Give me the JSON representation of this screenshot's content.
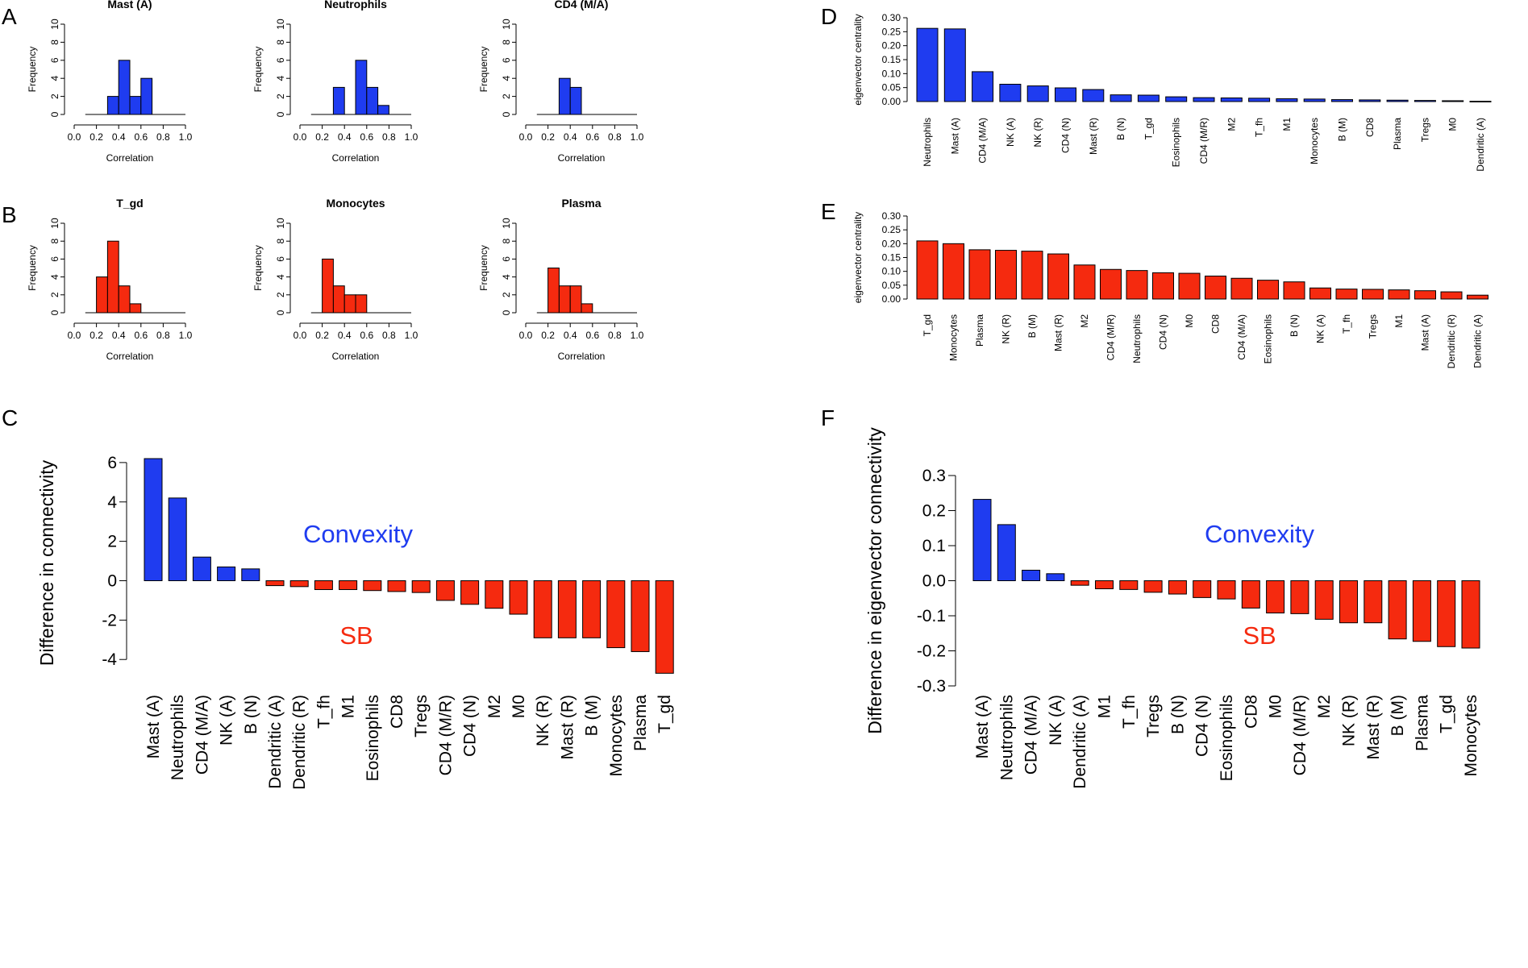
{
  "colors": {
    "blue": "#1f3cf0",
    "red": "#f52a0f",
    "axis": "#000000"
  },
  "chart_data": [
    {
      "panel": "A",
      "type": "histogram",
      "title": "Mast (A)",
      "xlabel": "Correlation",
      "ylabel": "Frequency",
      "xlim": [
        0,
        1
      ],
      "ylim": [
        0,
        10
      ],
      "xticks": [
        "0.0",
        "0.2",
        "0.4",
        "0.6",
        "0.8",
        "1.0"
      ],
      "yticks": [
        "0",
        "2",
        "4",
        "6",
        "8",
        "10"
      ],
      "bin_width": 0.1,
      "bins": [
        [
          0.3,
          2
        ],
        [
          0.4,
          6
        ],
        [
          0.5,
          2
        ],
        [
          0.6,
          4
        ]
      ],
      "baseline": [
        0.1,
        1.0
      ],
      "color": "blue"
    },
    {
      "panel": "A",
      "type": "histogram",
      "title": "Neutrophils",
      "xlabel": "Correlation",
      "ylabel": "Frequency",
      "xlim": [
        0,
        1
      ],
      "ylim": [
        0,
        10
      ],
      "xticks": [
        "0.0",
        "0.2",
        "0.4",
        "0.6",
        "0.8",
        "1.0"
      ],
      "yticks": [
        "0",
        "2",
        "4",
        "6",
        "8",
        "10"
      ],
      "bin_width": 0.1,
      "bins": [
        [
          0.3,
          3
        ],
        [
          0.4,
          0
        ],
        [
          0.5,
          6
        ],
        [
          0.6,
          3
        ],
        [
          0.7,
          1
        ]
      ],
      "baseline": [
        0.1,
        1.0
      ],
      "color": "blue"
    },
    {
      "panel": "A",
      "type": "histogram",
      "title": "CD4 (M/A)",
      "xlabel": "Correlation",
      "ylabel": "Frequency",
      "xlim": [
        0,
        1
      ],
      "ylim": [
        0,
        10
      ],
      "xticks": [
        "0.0",
        "0.2",
        "0.4",
        "0.6",
        "0.8",
        "1.0"
      ],
      "yticks": [
        "0",
        "2",
        "4",
        "6",
        "8",
        "10"
      ],
      "bin_width": 0.1,
      "bins": [
        [
          0.3,
          4
        ],
        [
          0.4,
          3
        ]
      ],
      "baseline": [
        0.1,
        1.0
      ],
      "color": "blue"
    },
    {
      "panel": "B",
      "type": "histogram",
      "title": "T_gd",
      "xlabel": "Correlation",
      "ylabel": "Frequency",
      "xlim": [
        0,
        1
      ],
      "ylim": [
        0,
        10
      ],
      "xticks": [
        "0.0",
        "0.2",
        "0.4",
        "0.6",
        "0.8",
        "1.0"
      ],
      "yticks": [
        "0",
        "2",
        "4",
        "6",
        "8",
        "10"
      ],
      "bin_width": 0.1,
      "bins": [
        [
          0.2,
          4
        ],
        [
          0.3,
          8
        ],
        [
          0.4,
          3
        ],
        [
          0.5,
          1
        ]
      ],
      "baseline": [
        0.1,
        1.0
      ],
      "color": "red"
    },
    {
      "panel": "B",
      "type": "histogram",
      "title": "Monocytes",
      "xlabel": "Correlation",
      "ylabel": "Frequency",
      "xlim": [
        0,
        1
      ],
      "ylim": [
        0,
        10
      ],
      "xticks": [
        "0.0",
        "0.2",
        "0.4",
        "0.6",
        "0.8",
        "1.0"
      ],
      "yticks": [
        "0",
        "2",
        "4",
        "6",
        "8",
        "10"
      ],
      "bin_width": 0.1,
      "bins": [
        [
          0.2,
          6
        ],
        [
          0.3,
          3
        ],
        [
          0.4,
          2
        ],
        [
          0.5,
          2
        ]
      ],
      "baseline": [
        0.1,
        1.0
      ],
      "color": "red"
    },
    {
      "panel": "B",
      "type": "histogram",
      "title": "Plasma",
      "xlabel": "Correlation",
      "ylabel": "Frequency",
      "xlim": [
        0,
        1
      ],
      "ylim": [
        0,
        10
      ],
      "xticks": [
        "0.0",
        "0.2",
        "0.4",
        "0.6",
        "0.8",
        "1.0"
      ],
      "yticks": [
        "0",
        "2",
        "4",
        "6",
        "8",
        "10"
      ],
      "bin_width": 0.1,
      "bins": [
        [
          0.2,
          5
        ],
        [
          0.3,
          3
        ],
        [
          0.4,
          3
        ],
        [
          0.5,
          1
        ]
      ],
      "baseline": [
        0.1,
        1.0
      ],
      "color": "red"
    },
    {
      "panel": "C",
      "type": "bar",
      "title": "",
      "xlabel": "",
      "ylabel": "Difference in connectivity",
      "ylim": [
        -4.4,
        6.2
      ],
      "yticks": [
        -4,
        -2,
        0,
        2,
        4,
        6
      ],
      "ytick_labels": [
        "-4",
        "-2",
        "0",
        "2",
        "4",
        "6"
      ],
      "annotations": [
        {
          "text": "Convexity",
          "color": "blue"
        },
        {
          "text": "SB",
          "color": "red"
        }
      ],
      "categories": [
        "Mast (A)",
        "Neutrophils",
        "CD4 (M/A)",
        "NK (A)",
        "B (N)",
        "Dendritic (A)",
        "Dendritic (R)",
        "T_fh",
        "M1",
        "Eosinophils",
        "CD8",
        "Tregs",
        "CD4 (M/R)",
        "CD4 (N)",
        "M2",
        "M0",
        "NK (R)",
        "Mast (R)",
        "B (M)",
        "Monocytes",
        "Plasma",
        "T_gd"
      ],
      "values": [
        6.2,
        4.2,
        1.2,
        0.7,
        0.6,
        -0.25,
        -0.3,
        -0.45,
        -0.45,
        -0.5,
        -0.55,
        -0.6,
        -1.0,
        -1.2,
        -1.4,
        -1.7,
        -2.9,
        -2.9,
        -2.9,
        -3.4,
        -3.6,
        -4.7
      ]
    },
    {
      "panel": "D",
      "type": "bar",
      "title": "",
      "xlabel": "",
      "ylabel": "eigenvector centrality",
      "ylim": [
        0,
        0.3
      ],
      "yticks": [
        0,
        0.05,
        0.1,
        0.15,
        0.2,
        0.25,
        0.3
      ],
      "ytick_labels": [
        "0.00",
        "0.05",
        "0.10",
        "0.15",
        "0.20",
        "0.25",
        "0.30"
      ],
      "categories": [
        "Neutrophils",
        "Mast (A)",
        "CD4 (M/A)",
        "NK (A)",
        "NK (R)",
        "CD4 (N)",
        "Mast (R)",
        "B (N)",
        "T_gd",
        "Eosinophils",
        "CD4 (M/R)",
        "M2",
        "T_fh",
        "M1",
        "Monocytes",
        "B (M)",
        "CD8",
        "Plasma",
        "Tregs",
        "M0",
        "Dendritic (A)"
      ],
      "values": [
        0.262,
        0.26,
        0.107,
        0.062,
        0.056,
        0.049,
        0.043,
        0.024,
        0.023,
        0.017,
        0.014,
        0.013,
        0.012,
        0.01,
        0.009,
        0.007,
        0.006,
        0.005,
        0.004,
        0.003,
        0.001
      ]
    },
    {
      "panel": "E",
      "type": "bar",
      "title": "",
      "xlabel": "",
      "ylabel": "eigenvector centrality",
      "ylim": [
        0,
        0.3
      ],
      "yticks": [
        0,
        0.05,
        0.1,
        0.15,
        0.2,
        0.25,
        0.3
      ],
      "ytick_labels": [
        "0.00",
        "0.05",
        "0.10",
        "0.15",
        "0.20",
        "0.25",
        "0.30"
      ],
      "categories": [
        "T_gd",
        "Monocytes",
        "Plasma",
        "NK (R)",
        "B (M)",
        "Mast (R)",
        "M2",
        "CD4 (M/R)",
        "Neutrophils",
        "CD4 (N)",
        "M0",
        "CD8",
        "CD4 (M/A)",
        "Eosinophils",
        "B (N)",
        "NK (A)",
        "T_fh",
        "Tregs",
        "M1",
        "Mast (A)",
        "Dendritic (R)",
        "Dendritic (A)"
      ],
      "values": [
        0.21,
        0.2,
        0.178,
        0.176,
        0.173,
        0.163,
        0.123,
        0.107,
        0.103,
        0.095,
        0.093,
        0.083,
        0.075,
        0.068,
        0.062,
        0.04,
        0.036,
        0.035,
        0.033,
        0.03,
        0.026,
        0.014
      ]
    },
    {
      "panel": "F",
      "type": "bar",
      "title": "",
      "xlabel": "",
      "ylabel": "Difference in eigenvector connectivity",
      "ylim": [
        -0.3,
        0.3
      ],
      "yticks": [
        -0.3,
        -0.2,
        -0.1,
        0,
        0.1,
        0.2,
        0.3
      ],
      "ytick_labels": [
        "-0.3",
        "-0.2",
        "-0.1",
        "0.0",
        "0.1",
        "0.2",
        "0.3"
      ],
      "annotations": [
        {
          "text": "Convexity",
          "color": "blue"
        },
        {
          "text": "SB",
          "color": "red"
        }
      ],
      "categories": [
        "Mast (A)",
        "Neutrophils",
        "CD4 (M/A)",
        "NK (A)",
        "Dendritic (A)",
        "M1",
        "T_fh",
        "Tregs",
        "B (N)",
        "CD4 (N)",
        "Eosinophils",
        "CD8",
        "M0",
        "CD4 (M/R)",
        "M2",
        "NK (R)",
        "Mast (R)",
        "B (M)",
        "Plasma",
        "T_gd",
        "Monocytes"
      ],
      "values": [
        0.232,
        0.16,
        0.03,
        0.02,
        -0.013,
        -0.023,
        -0.025,
        -0.033,
        -0.038,
        -0.048,
        -0.052,
        -0.078,
        -0.092,
        -0.094,
        -0.11,
        -0.12,
        -0.12,
        -0.166,
        -0.173,
        -0.188,
        -0.192
      ]
    }
  ]
}
